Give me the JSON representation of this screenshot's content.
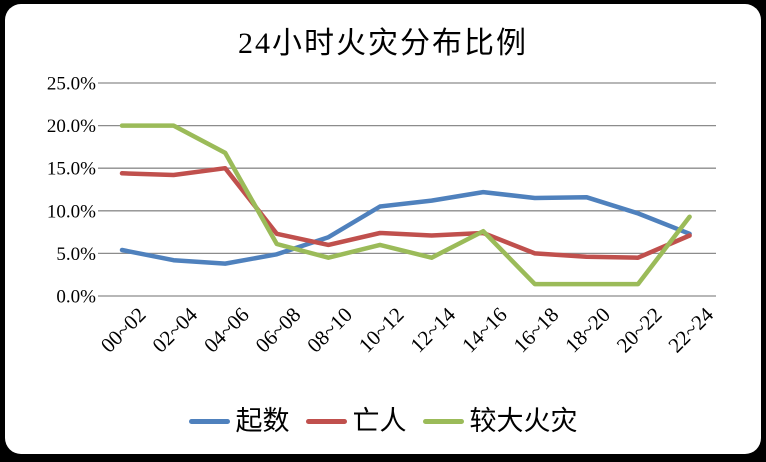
{
  "chart_data": {
    "type": "line",
    "title": "24小时火灾分布比例",
    "categories": [
      "00~02",
      "02~04",
      "04~06",
      "06~08",
      "08~10",
      "10~12",
      "12~14",
      "14~16",
      "16~18",
      "18~20",
      "20~22",
      "22~24"
    ],
    "series": [
      {
        "name": "起数",
        "color": "#4F81BD",
        "values": [
          5.4,
          4.2,
          3.8,
          4.9,
          6.9,
          10.5,
          11.2,
          12.2,
          11.5,
          11.6,
          9.7,
          7.3
        ]
      },
      {
        "name": "亡人",
        "color": "#C0504D",
        "values": [
          14.4,
          14.2,
          15.0,
          7.3,
          6.0,
          7.4,
          7.1,
          7.4,
          5.0,
          4.6,
          4.5,
          7.1
        ]
      },
      {
        "name": "较大火灾",
        "color": "#9BBB59",
        "values": [
          20.0,
          20.0,
          16.8,
          6.1,
          4.5,
          6.0,
          4.5,
          7.6,
          1.4,
          1.4,
          1.4,
          9.3
        ]
      }
    ],
    "ylim": [
      0,
      25
    ],
    "ytick_step": 5,
    "ytick_labels": [
      "0.0%",
      "5.0%",
      "10.0%",
      "15.0%",
      "20.0%",
      "25.0%"
    ],
    "grid": true,
    "legend_position": "bottom",
    "gridline_color": "#8C8C8C",
    "text_color": "#000000",
    "background_color": "#FFFFFF",
    "frame_color": "#000000"
  }
}
